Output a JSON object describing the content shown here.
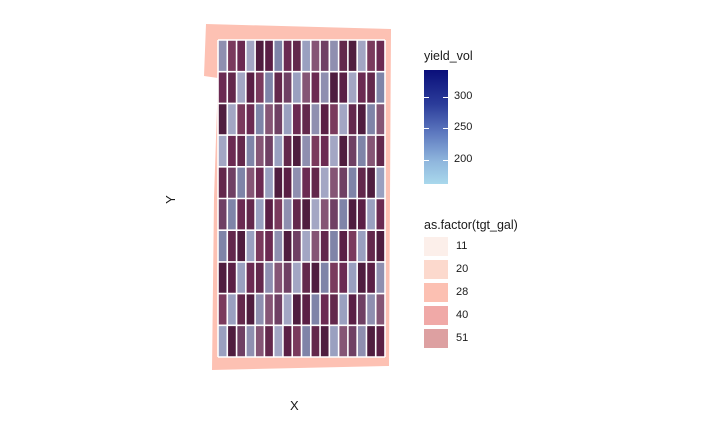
{
  "axes": {
    "x_title": "X",
    "y_title": "Y"
  },
  "yield_legend": {
    "title": "yield_vol",
    "ticks": [
      {
        "label": "300",
        "value": 300
      },
      {
        "label": "250",
        "value": 250
      },
      {
        "label": "200",
        "value": 200
      }
    ],
    "range": [
      162,
      342
    ],
    "color_low": "#a9d8ec",
    "color_high": "#0a0f7a"
  },
  "tgt_legend": {
    "title": "as.factor(tgt_gal)",
    "items": [
      {
        "label": "11",
        "color": "#fcefea"
      },
      {
        "label": "20",
        "color": "#fcd9cd"
      },
      {
        "label": "28",
        "color": "#fcc0b2"
      },
      {
        "label": "40",
        "color": "#f0a9a7"
      },
      {
        "label": "51",
        "color": "#dda0a1"
      }
    ]
  },
  "field": {
    "boundary_color": "#fdc1b3",
    "grid_rows": 10,
    "grid_cols": 18,
    "grid_line_color": "#ffffff"
  }
}
